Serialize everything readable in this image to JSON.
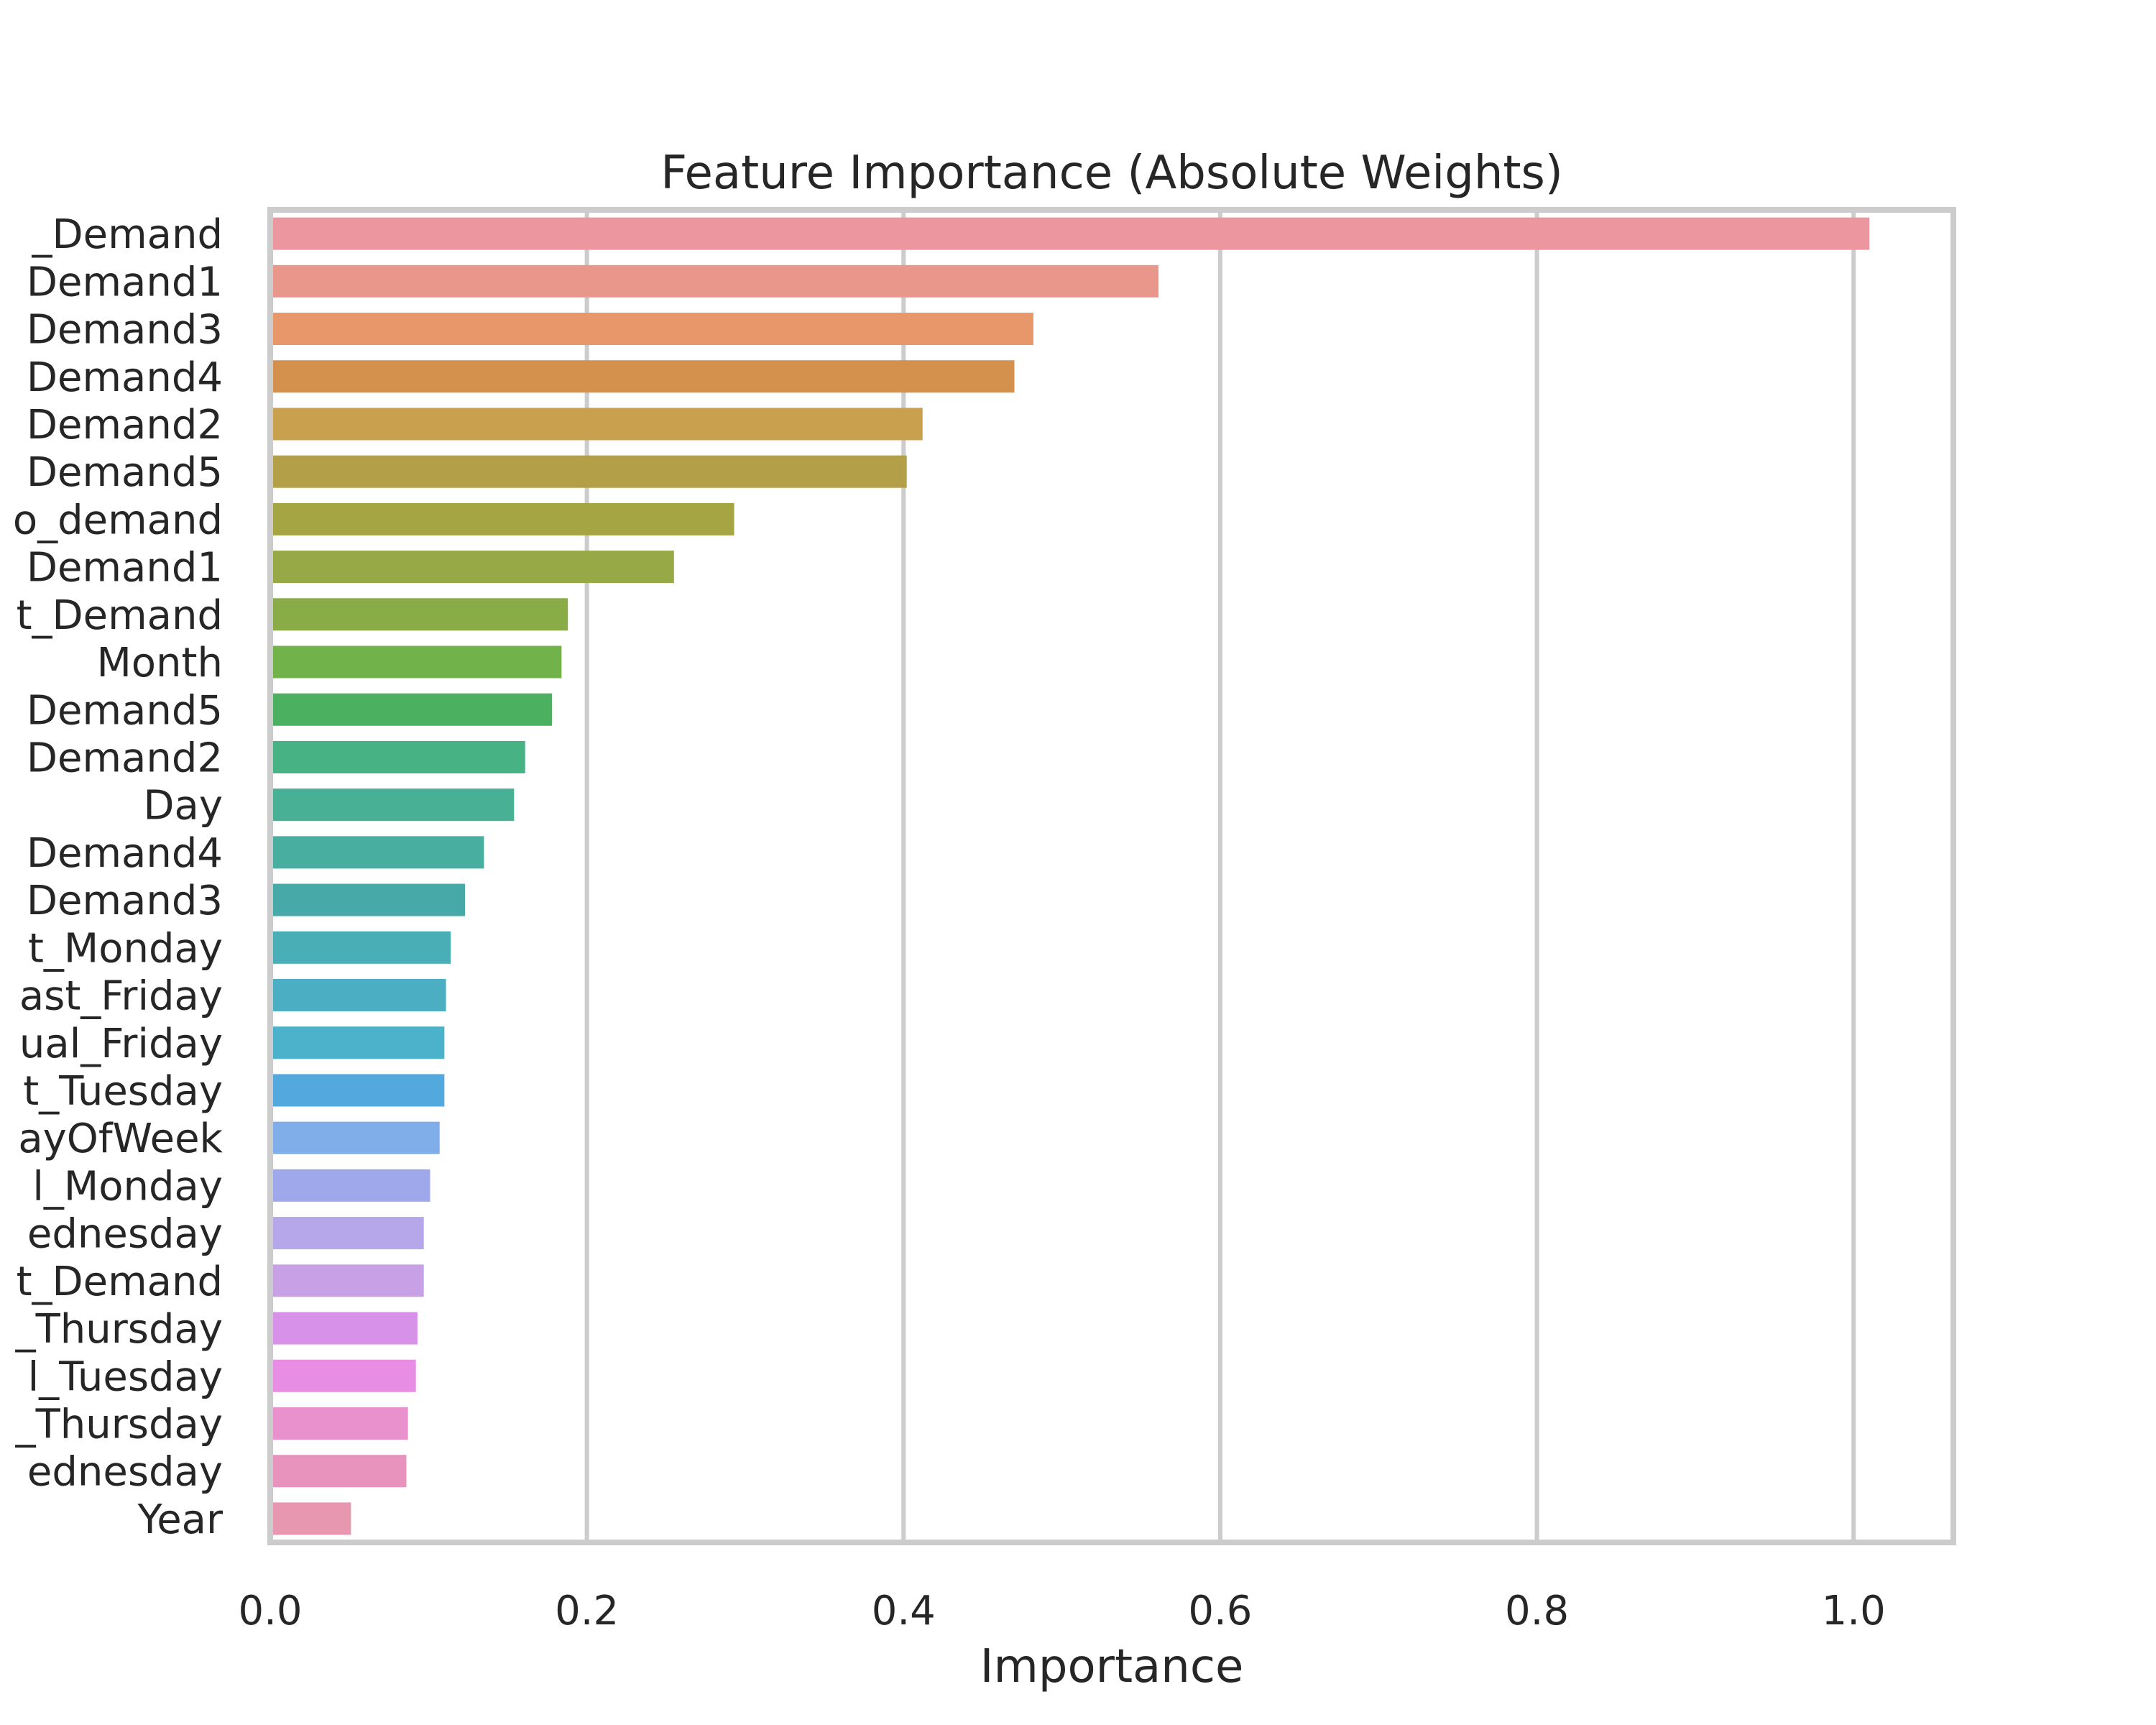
{
  "chart_data": {
    "type": "bar",
    "orientation": "horizontal",
    "title": "Feature Importance (Absolute Weights)",
    "xlabel": "Importance",
    "ylabel": "",
    "xlim": [
      0,
      1.063
    ],
    "xticks": [
      0.0,
      0.2,
      0.4,
      0.6,
      0.8,
      1.0
    ],
    "xtick_labels": [
      "0.0",
      "0.2",
      "0.4",
      "0.6",
      "0.8",
      "1.0"
    ],
    "grid": "vertical",
    "categories": [
      "_Demand",
      "Demand1",
      "Demand3",
      "Demand4",
      "Demand2",
      "Demand5",
      "o_demand",
      "Demand1",
      "t_Demand",
      "Month",
      "Demand5",
      "Demand2",
      "Day",
      "Demand4",
      "Demand3",
      "t_Monday",
      "ast_Friday",
      "ual_Friday",
      "t_Tuesday",
      "ayOfWeek",
      "l_Monday",
      "ednesday",
      "t_Demand",
      "_Thursday",
      "l_Tuesday",
      "_Thursday",
      "ednesday",
      "Year"
    ],
    "values": [
      1.01,
      0.561,
      0.482,
      0.47,
      0.412,
      0.402,
      0.293,
      0.255,
      0.188,
      0.184,
      0.178,
      0.161,
      0.154,
      0.135,
      0.123,
      0.114,
      0.111,
      0.11,
      0.11,
      0.107,
      0.101,
      0.097,
      0.097,
      0.093,
      0.092,
      0.087,
      0.086,
      0.051
    ],
    "colors": [
      "#ec97a0",
      "#ea978b",
      "#e8976a",
      "#d4914e",
      "#c8a04e",
      "#b29f48",
      "#a5a544",
      "#97a846",
      "#8aac46",
      "#72b24a",
      "#4bb160",
      "#47b283",
      "#48b094",
      "#48ae9f",
      "#48aaa8",
      "#4aaeb7",
      "#4baec3",
      "#4cb2cb",
      "#53a9de",
      "#80aee8",
      "#9ea8ea",
      "#b6a6ea",
      "#c8a0e6",
      "#d891e8",
      "#e78ee4",
      "#e891cc",
      "#e892be",
      "#e897b0"
    ]
  }
}
